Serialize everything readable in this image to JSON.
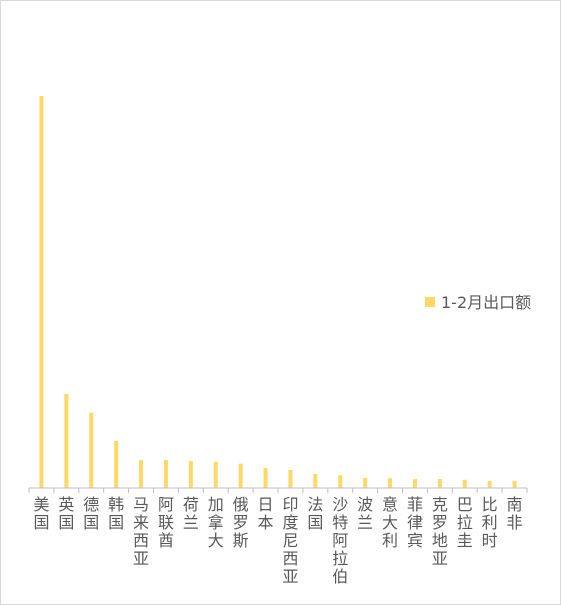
{
  "chart_data": {
    "type": "bar",
    "title": "",
    "xlabel": "",
    "ylabel": "",
    "categories": [
      "美国",
      "英国",
      "德国",
      "韩国",
      "马来西亚",
      "阿联酋",
      "荷兰",
      "加拿大",
      "俄罗斯",
      "日本",
      "印度尼西亚",
      "法国",
      "沙特阿拉伯",
      "波兰",
      "意大利",
      "菲律宾",
      "克罗地亚",
      "巴拉圭",
      "比利时",
      "南非"
    ],
    "series": [
      {
        "name": "1-2月出口额",
        "values": [
          100,
          24,
          19.2,
          12,
          7.1,
          7.1,
          6.9,
          6.7,
          6.2,
          5.1,
          4.6,
          3.6,
          3.3,
          2.6,
          2.5,
          2.3,
          2.3,
          2.1,
          1.8,
          1.8
        ]
      }
    ],
    "ylim": [
      0,
      100
    ],
    "grid": false,
    "legend_position": "right",
    "colors": {
      "bar": "#FFD966",
      "axis": "#bfbfbf",
      "text": "#595959"
    }
  }
}
